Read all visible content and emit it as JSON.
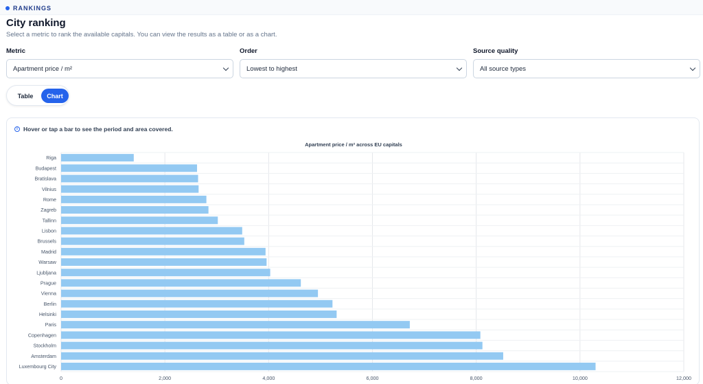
{
  "header": {
    "badge": "RANKINGS",
    "title": "City ranking",
    "subtitle": "Select a metric to rank the available capitals. You can view the results as a table or as a chart."
  },
  "filters": [
    {
      "label": "Metric",
      "value": "Apartment price / m²"
    },
    {
      "label": "Order",
      "value": "Lowest to highest"
    },
    {
      "label": "Source quality",
      "value": "All source types"
    }
  ],
  "view_toggle": {
    "table_label": "Table",
    "chart_label": "Chart",
    "active": "Chart"
  },
  "hint": "Hover or tap a bar to see the period and area covered.",
  "colors": {
    "accent": "#2563eb",
    "bar": "#93c9f2"
  },
  "chart_data": {
    "type": "bar",
    "orientation": "horizontal",
    "title": "Apartment price / m² across EU capitals",
    "categories": [
      "Riga",
      "Budapest",
      "Bratislava",
      "Vilnius",
      "Rome",
      "Zagreb",
      "Tallinn",
      "Lisbon",
      "Brussels",
      "Madrid",
      "Warsaw",
      "Ljubljana",
      "Prague",
      "Vienna",
      "Berlin",
      "Helsinki",
      "Paris",
      "Copenhagen",
      "Stockholm",
      "Amsterdam",
      "Luxembourg City"
    ],
    "values": [
      1400,
      2620,
      2640,
      2650,
      2800,
      2840,
      3020,
      3490,
      3530,
      3940,
      3960,
      4030,
      4620,
      4950,
      5230,
      5310,
      6720,
      8080,
      8120,
      8520,
      10300
    ],
    "xlim": [
      0,
      12000
    ],
    "xticks": [
      0,
      2000,
      4000,
      6000,
      8000,
      10000,
      12000
    ],
    "xticklabels": [
      "0",
      "2,000",
      "4,000",
      "6,000",
      "8,000",
      "10,000",
      "12,000"
    ],
    "grid": true,
    "legend": "none"
  }
}
